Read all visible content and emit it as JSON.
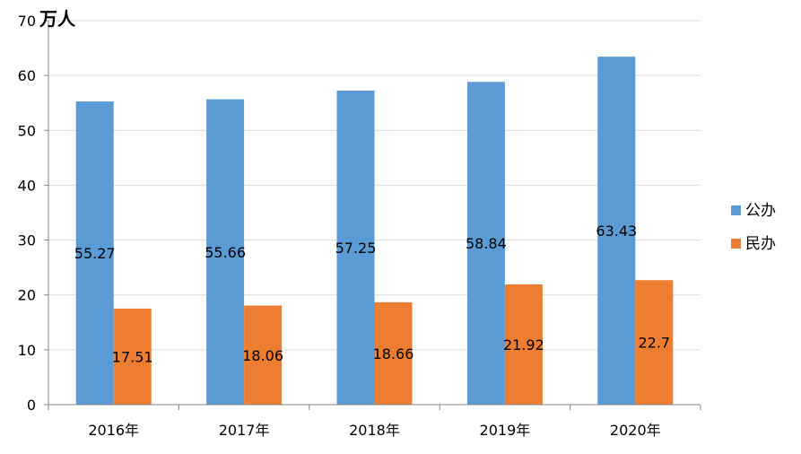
{
  "chart_data": {
    "type": "bar",
    "title": "",
    "unit_label": "万人",
    "xlabel": "",
    "ylabel": "",
    "categories": [
      "2016年",
      "2017年",
      "2018年",
      "2019年",
      "2020年"
    ],
    "series": [
      {
        "name": "公办",
        "color": "#5B9BD5",
        "values": [
          55.27,
          55.66,
          57.25,
          58.84,
          63.43
        ]
      },
      {
        "name": "民办",
        "color": "#ED7D31",
        "values": [
          17.51,
          18.06,
          18.66,
          21.92,
          22.7
        ]
      }
    ],
    "ylim": [
      0,
      70
    ],
    "yticks": [
      0,
      10,
      20,
      30,
      40,
      50,
      60,
      70
    ],
    "grid": true,
    "legend_position": "right"
  }
}
